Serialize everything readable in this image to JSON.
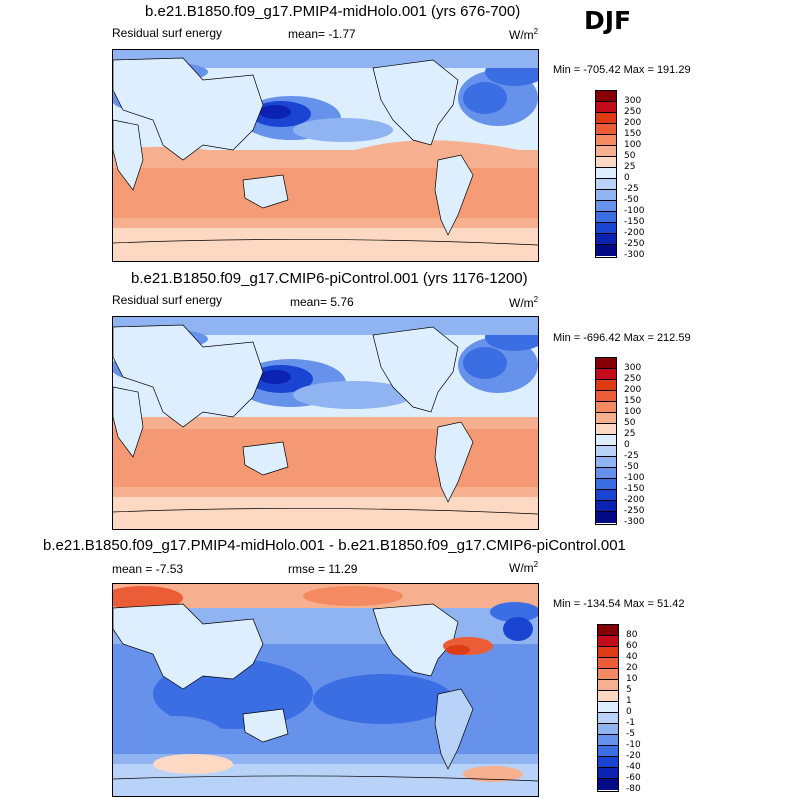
{
  "season": "DJF",
  "palette": {
    "full": [
      "#850004",
      "#c30c1b",
      "#de3a14",
      "#eb5d36",
      "#f48a62",
      "#f6b08f",
      "#fdd9c3",
      "#ddeefe",
      "#b9d2f8",
      "#8fb4f1",
      "#6792ec",
      "#3b6de3",
      "#1a45d2",
      "#0b22b2",
      "#020a86"
    ],
    "diff": [
      "#850004",
      "#c30c1b",
      "#de3a14",
      "#eb5d36",
      "#f48a62",
      "#f6b08f",
      "#fdd9c3",
      "#fbe6dc",
      "#ddeefe",
      "#b9d2f8",
      "#8fb4f1",
      "#6792ec",
      "#3b6de3",
      "#1a45d2",
      "#0b22b2",
      "#020a86"
    ]
  },
  "panels": [
    {
      "title": "b.e21.B1850.f09_g17.PMIP4-midHolo.001 (yrs 676-700)",
      "left_label": "Residual surf energy",
      "mean_label": "mean=  -1.77",
      "units_base": "W/m",
      "units_exp": "2",
      "minmax": "Min = -705.42 Max = 191.29",
      "levels": [
        "300",
        "250",
        "200",
        "150",
        "100",
        "50",
        "25",
        "0",
        "-25",
        "-50",
        "-100",
        "-150",
        "-200",
        "-250",
        "-300"
      ]
    },
    {
      "title": "b.e21.B1850.f09_g17.CMIP6-piControl.001 (yrs 1176-1200)",
      "left_label": "Residual surf energy",
      "mean_label": "mean=  5.76",
      "units_base": "W/m",
      "units_exp": "2",
      "minmax": "Min = -696.42 Max = 212.59",
      "levels": [
        "300",
        "250",
        "200",
        "150",
        "100",
        "50",
        "25",
        "0",
        "-25",
        "-50",
        "-100",
        "-150",
        "-200",
        "-250",
        "-300"
      ]
    },
    {
      "title": "b.e21.B1850.f09_g17.PMIP4-midHolo.001 - b.e21.B1850.f09_g17.CMIP6-piControl.001",
      "left_label": "mean =  -7.53",
      "mean_label": "rmse =  11.29",
      "units_base": "W/m",
      "units_exp": "2",
      "minmax": "Min = -134.54 Max =  51.42",
      "levels": [
        "80",
        "60",
        "40",
        "20",
        "10",
        "5",
        "1",
        "0",
        "-1",
        "-5",
        "-10",
        "-20",
        "-40",
        "-60",
        "-80"
      ]
    }
  ]
}
